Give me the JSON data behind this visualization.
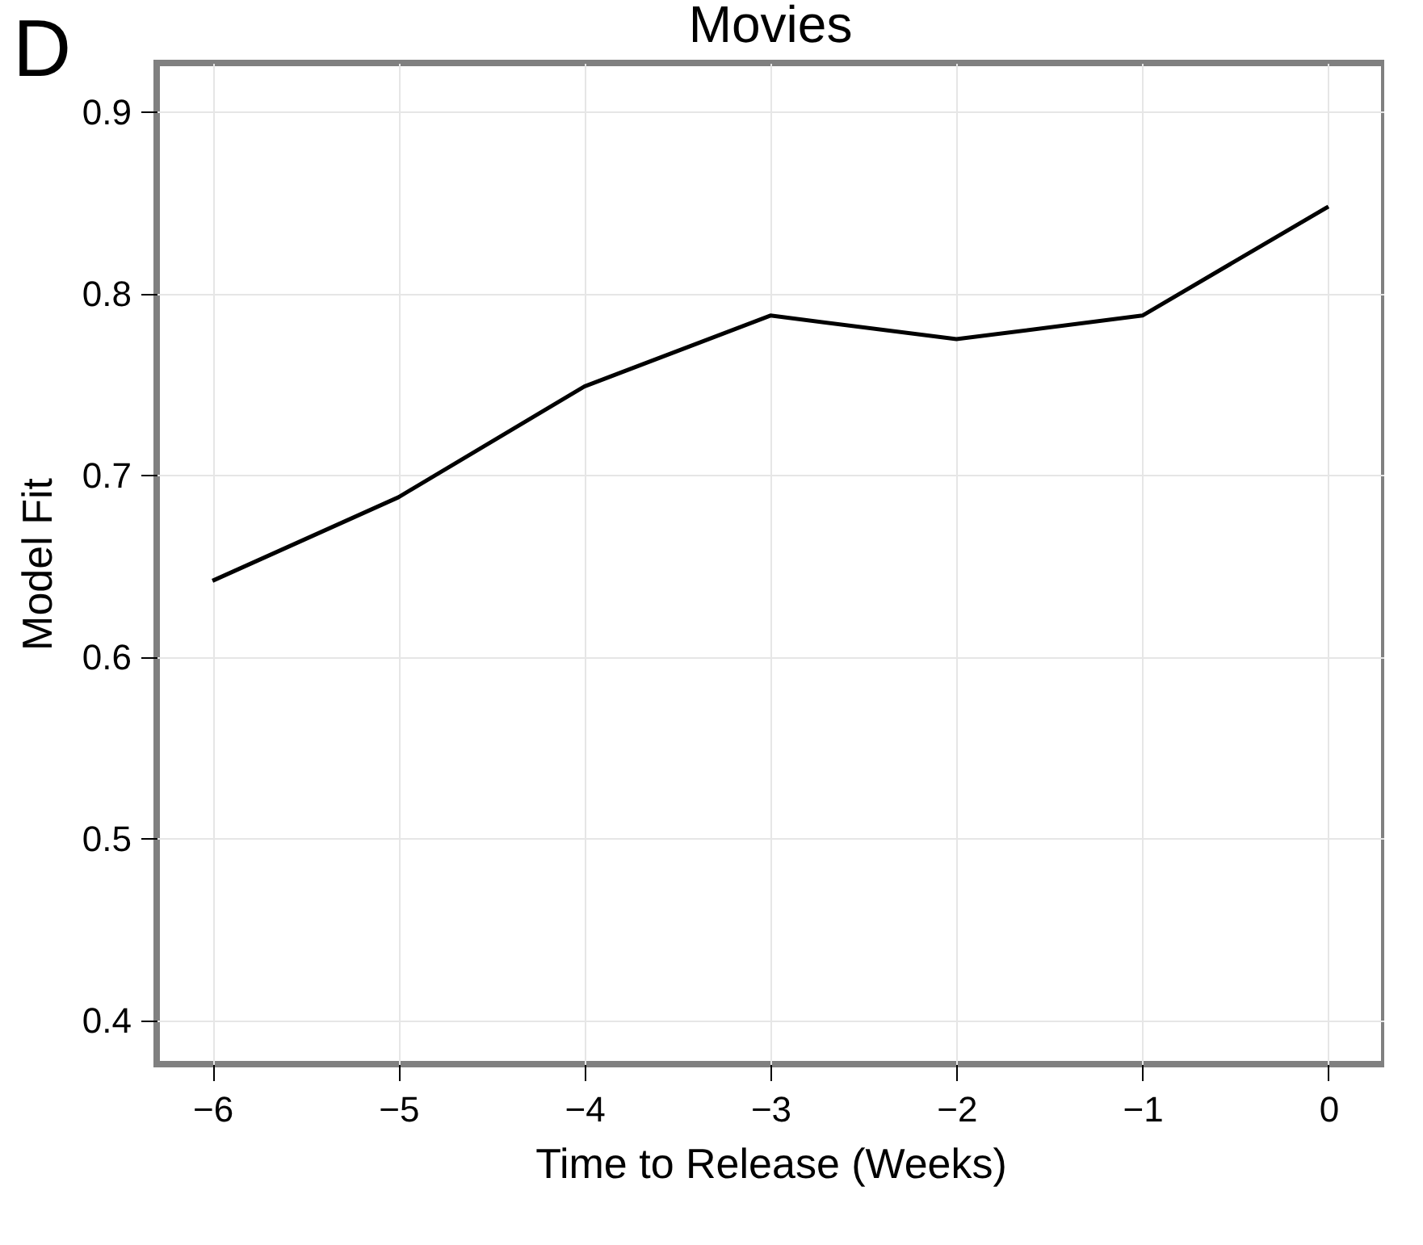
{
  "chart_data": {
    "type": "line",
    "title": "Movies",
    "xlabel": "Time to Release (Weeks)",
    "ylabel": "Model Fit",
    "annotations": [
      "D"
    ],
    "x": [
      -6,
      -5,
      -4,
      -3,
      -2,
      -1,
      0
    ],
    "series": [
      {
        "color": "#000000",
        "values": [
          0.642,
          0.688,
          0.749,
          0.788,
          0.775,
          0.788,
          0.848
        ]
      }
    ],
    "xlim": [
      -6.3,
      0.3
    ],
    "xticks": [
      -6,
      -5,
      -4,
      -3,
      -2,
      -1,
      0
    ],
    "ylim": [
      0.376,
      0.927
    ],
    "yticks": [
      0.4,
      0.5,
      0.6,
      0.7,
      0.8,
      0.9
    ],
    "grid": true,
    "marker": "none",
    "line_style": "solid"
  }
}
